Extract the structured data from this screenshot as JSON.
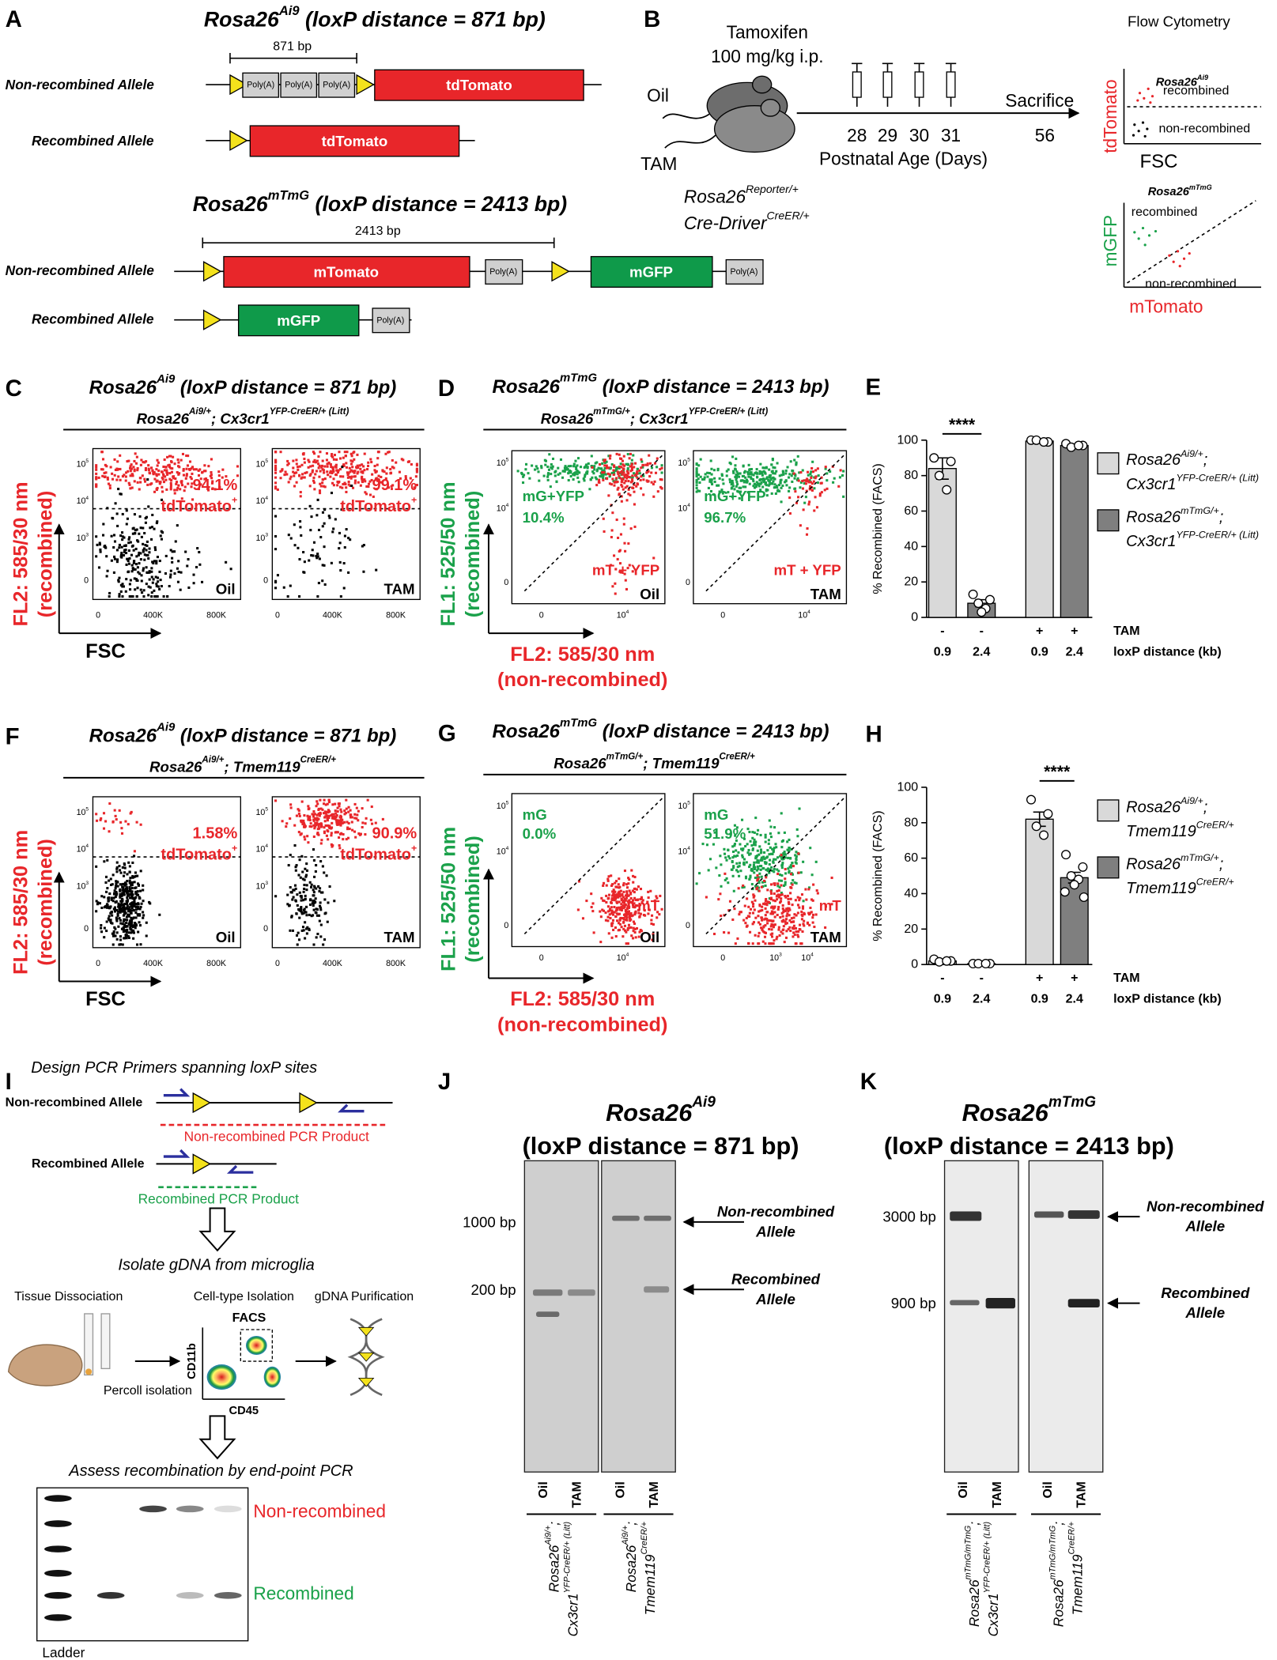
{
  "A": {
    "label": "A",
    "ai9": {
      "title": [
        "Rosa26",
        {
          "sup": "Ai9"
        },
        " (loxP distance = 871 bp)"
      ],
      "distance": "871 bp",
      "non_recombined": "Non-recombined Allele",
      "recombined": "Recombined Allele",
      "polya": "Poly(A)",
      "gene": "tdTomato"
    },
    "mtmg": {
      "title": [
        "Rosa26",
        {
          "sup": "mTmG"
        },
        " (loxP distance = 2413 bp)"
      ],
      "distance": "2413 bp",
      "non_recombined": "Non-recombined Allele",
      "recombined": "Recombined Allele",
      "polya": "Poly(A)",
      "gene_red": "mTomato",
      "gene_green": "mGFP"
    }
  },
  "B": {
    "label": "B",
    "drug": "Tamoxifen",
    "dose": "100 mg/kg i.p.",
    "oil": "Oil",
    "tam": "TAM",
    "injection_days": [
      28,
      29,
      30,
      31
    ],
    "sacrifice_label": "Sacrifice",
    "sacrifice_day": 56,
    "axis_label": "Postnatal Age (Days)",
    "genotype": [
      [
        "Rosa26",
        {
          "sup": "Reporter/+"
        }
      ],
      [
        "Cre-Driver",
        {
          "sup": "CreER/+"
        }
      ]
    ],
    "flow_title": "Flow Cytometry",
    "ai9_plot": {
      "title": [
        "Rosa26",
        {
          "sup": "Ai9"
        }
      ],
      "ylabel": "tdTomato",
      "xlabel": "FSC",
      "upper": "recombined",
      "lower": "non-recombined"
    },
    "mtmg_plot": {
      "title": [
        "Rosa26",
        {
          "sup": "mTmG"
        }
      ],
      "ylabel": "mGFP",
      "xlabel": "mTomato",
      "upper": "recombined",
      "lower": "non-recombined"
    }
  },
  "C": {
    "label": "C",
    "title": [
      "Rosa26",
      {
        "sup": "Ai9"
      },
      " (loxP distance = 871 bp)"
    ],
    "genotype": [
      "Rosa26",
      {
        "sup": "Ai9/+"
      },
      "; Cx3cr1",
      {
        "sup": "YFP-CreER/+ (Litt)"
      }
    ],
    "ylabel": [
      "FL2: 585/30 nm",
      "(recombined)"
    ],
    "xlabel": "FSC",
    "yticks": [
      "0",
      [
        "10",
        {
          "sup": "3"
        }
      ],
      [
        "10",
        {
          "sup": "4"
        }
      ],
      [
        "10",
        {
          "sup": "5"
        }
      ]
    ],
    "xticks": [
      "0",
      "400K",
      "800K"
    ],
    "plots": [
      {
        "percent": "94.1%",
        "gate": [
          "tdTomato",
          {
            "sup": "+"
          }
        ],
        "condition": "Oil"
      },
      {
        "percent": "99.1%",
        "gate": [
          "tdTomato",
          {
            "sup": "+"
          }
        ],
        "condition": "TAM"
      }
    ]
  },
  "D": {
    "label": "D",
    "title": [
      "Rosa26",
      {
        "sup": "mTmG"
      },
      " (loxP distance = 2413 bp)"
    ],
    "genotype": [
      "Rosa26",
      {
        "sup": "mTmG/+"
      },
      "; Cx3cr1",
      {
        "sup": "YFP-CreER/+ (Litt)"
      }
    ],
    "ylabel": [
      "FL1: 525/50 nm",
      "(recombined)"
    ],
    "xlabel": [
      "FL2: 585/30 nm",
      "(non-recombined)"
    ],
    "yticks": [
      "0",
      [
        "10",
        {
          "sup": "4"
        }
      ],
      [
        "10",
        {
          "sup": "5"
        }
      ]
    ],
    "plots": [
      {
        "green_gate": "mG+YFP",
        "percent": "10.4%",
        "red_gate": "mT + YFP",
        "condition": "Oil",
        "xticks": [
          "0",
          [
            "10",
            {
              "sup": "4"
            }
          ]
        ]
      },
      {
        "green_gate": "mG+YFP",
        "percent": "96.7%",
        "red_gate": "mT + YFP",
        "condition": "TAM",
        "xticks": [
          "0",
          [
            "10",
            {
              "sup": "4"
            }
          ]
        ]
      }
    ]
  },
  "E": {
    "label": "E",
    "type": "bar",
    "ylabel": "% Recombined (FACS)",
    "ylim": [
      0,
      100
    ],
    "yticks": [
      0,
      20,
      40,
      60,
      80,
      100
    ],
    "significance": "****",
    "row_labels": [
      "TAM",
      "loxP distance (kb)"
    ],
    "bars": [
      {
        "value": 84,
        "error": 6,
        "points": [
          90,
          88,
          80,
          72
        ],
        "tam": "-",
        "loxp": "0.9",
        "color": "#d9d9d9"
      },
      {
        "value": 8,
        "error": 2,
        "points": [
          13,
          10,
          8,
          5,
          3
        ],
        "tam": "-",
        "loxp": "2.4",
        "color": "#7f7f7f"
      },
      {
        "value": 99.5,
        "error": 0.3,
        "points": [
          100,
          99,
          100,
          99
        ],
        "tam": "+",
        "loxp": "0.9",
        "color": "#d9d9d9"
      },
      {
        "value": 97,
        "error": 0.6,
        "points": [
          98,
          97,
          96,
          97
        ],
        "tam": "+",
        "loxp": "2.4",
        "color": "#7f7f7f"
      }
    ],
    "legend": [
      {
        "color": "#d9d9d9",
        "lines": [
          [
            "Rosa26",
            {
              "sup": "Ai9/+"
            },
            ";"
          ],
          [
            "Cx3cr1",
            {
              "sup": "YFP-CreER/+ (Litt)"
            }
          ]
        ]
      },
      {
        "color": "#7f7f7f",
        "lines": [
          [
            "Rosa26",
            {
              "sup": "mTmG/+"
            },
            ";"
          ],
          [
            "Cx3cr1",
            {
              "sup": "YFP-CreER/+ (Litt)"
            }
          ]
        ]
      }
    ]
  },
  "F": {
    "label": "F",
    "title": [
      "Rosa26",
      {
        "sup": "Ai9"
      },
      " (loxP distance = 871 bp)"
    ],
    "genotype": [
      "Rosa26",
      {
        "sup": "Ai9/+"
      },
      "; Tmem119",
      {
        "sup": "CreER/+"
      }
    ],
    "ylabel": [
      "FL2: 585/30 nm",
      "(recombined)"
    ],
    "xlabel": "FSC",
    "yticks": [
      "0",
      [
        "10",
        {
          "sup": "3"
        }
      ],
      [
        "10",
        {
          "sup": "4"
        }
      ],
      [
        "10",
        {
          "sup": "5"
        }
      ]
    ],
    "xticks": [
      "0",
      "400K",
      "800K"
    ],
    "plots": [
      {
        "percent": "1.58%",
        "gate": [
          "tdTomato",
          {
            "sup": "+"
          }
        ],
        "condition": "Oil"
      },
      {
        "percent": "90.9%",
        "gate": [
          "tdTomato",
          {
            "sup": "+"
          }
        ],
        "condition": "TAM"
      }
    ]
  },
  "G": {
    "label": "G",
    "title": [
      "Rosa26",
      {
        "sup": "mTmG"
      },
      " (loxP distance = 2413 bp)"
    ],
    "genotype": [
      "Rosa26",
      {
        "sup": "mTmG/+"
      },
      "; Tmem119",
      {
        "sup": "CreER/+"
      }
    ],
    "ylabel": [
      "FL1: 525/50 nm",
      "(recombined)"
    ],
    "xlabel": [
      "FL2: 585/30 nm",
      "(non-recombined)"
    ],
    "yticks": [
      "0",
      [
        "10",
        {
          "sup": "4"
        }
      ],
      [
        "10",
        {
          "sup": "5"
        }
      ]
    ],
    "plots": [
      {
        "green_gate": "mG",
        "percent": "0.0%",
        "red_gate": "mT",
        "condition": "Oil",
        "xticks": [
          "0",
          [
            "10",
            {
              "sup": "4"
            }
          ]
        ]
      },
      {
        "green_gate": "mG",
        "percent": "51.9%",
        "red_gate": "mT",
        "condition": "TAM",
        "xticks": [
          "0",
          [
            "10",
            {
              "sup": "3"
            }
          ],
          [
            "10",
            {
              "sup": "4"
            }
          ]
        ]
      }
    ]
  },
  "H": {
    "label": "H",
    "type": "bar",
    "ylabel": "% Recombined (FACS)",
    "ylim": [
      0,
      100
    ],
    "yticks": [
      0,
      20,
      40,
      60,
      80,
      100
    ],
    "significance": "****",
    "row_labels": [
      "TAM",
      "loxP distance (kb)"
    ],
    "bars": [
      {
        "value": 2,
        "error": 0.6,
        "points": [
          3,
          2,
          1.5,
          2
        ],
        "tam": "-",
        "loxp": "0.9",
        "color": "#d9d9d9"
      },
      {
        "value": 0.5,
        "error": 0.1,
        "points": [
          0.5,
          0.5,
          0.5,
          0.5
        ],
        "tam": "-",
        "loxp": "2.4",
        "color": "#7f7f7f"
      },
      {
        "value": 82,
        "error": 4,
        "points": [
          93,
          85,
          78,
          73
        ],
        "tam": "+",
        "loxp": "0.9",
        "color": "#d9d9d9"
      },
      {
        "value": 49,
        "error": 3,
        "points": [
          62,
          55,
          50,
          48,
          45,
          41,
          38
        ],
        "tam": "+",
        "loxp": "2.4",
        "color": "#7f7f7f"
      }
    ],
    "legend": [
      {
        "color": "#d9d9d9",
        "lines": [
          [
            "Rosa26",
            {
              "sup": "Ai9/+"
            },
            ";"
          ],
          [
            "Tmem119",
            {
              "sup": "CreER/+"
            }
          ]
        ]
      },
      {
        "color": "#7f7f7f",
        "lines": [
          [
            "Rosa26",
            {
              "sup": "mTmG/+"
            },
            ";"
          ],
          [
            "Tmem119",
            {
              "sup": "CreER/+"
            }
          ]
        ]
      }
    ]
  },
  "I": {
    "label": "I",
    "step1": "Design PCR Primers spanning loxP sites",
    "non_recombined_allele": "Non-recombined Allele",
    "non_recombined_product": "Non-recombined PCR Product",
    "recombined_allele": "Recombined Allele",
    "recombined_product": "Recombined PCR Product",
    "step2": "Isolate gDNA from microglia",
    "substeps": [
      "Tissue Dissociation",
      "Cell-type Isolation",
      "gDNA Purification"
    ],
    "facs": "FACS",
    "facs_y": "CD11b",
    "facs_x": "CD45",
    "percoll": "Percoll isolation",
    "step3": "Assess recombination by end-point PCR",
    "band_upper": "Non-recombined",
    "band_lower": "Recombined",
    "ladder": "Ladder"
  },
  "J": {
    "label": "J",
    "title": [
      [
        "Rosa26",
        {
          "sup": "Ai9"
        }
      ],
      "(loxP distance = 871 bp)"
    ],
    "ladder_marks": [
      "1000 bp",
      "200 bp"
    ],
    "arrows": [
      [
        "Non-recombined",
        "Allele"
      ],
      [
        "Recombined",
        "Allele"
      ]
    ],
    "lanes": [
      "Oil",
      "TAM",
      "Oil",
      "TAM"
    ],
    "genotypes": [
      [
        [
          "Rosa26",
          {
            "sup": "Ai9/+"
          },
          ";"
        ],
        [
          "Cx3cr1",
          {
            "sup": "YFP-CreER/+ (Litt)"
          }
        ]
      ],
      [
        [
          "Rosa26",
          {
            "sup": "Ai9/+"
          },
          ";"
        ],
        [
          "Tmem119",
          {
            "sup": "CreER/+"
          }
        ]
      ]
    ]
  },
  "K": {
    "label": "K",
    "title": [
      [
        "Rosa26",
        {
          "sup": "mTmG"
        }
      ],
      "(loxP distance = 2413 bp)"
    ],
    "ladder_marks": [
      "3000 bp",
      "900 bp"
    ],
    "arrows": [
      [
        "Non-recombined",
        "Allele"
      ],
      [
        "Recombined",
        "Allele"
      ]
    ],
    "lanes": [
      "Oil",
      "TAM",
      "Oil",
      "TAM"
    ],
    "genotypes": [
      [
        [
          "Rosa26",
          {
            "sup": "mTmG/mTmG"
          },
          ";"
        ],
        [
          "Cx3cr1",
          {
            "sup": "YFP-CreER/+ (Litt)"
          }
        ]
      ],
      [
        [
          "Rosa26",
          {
            "sup": "mTmG/mTmG"
          },
          ";"
        ],
        [
          "Tmem119",
          {
            "sup": "CreER/+"
          }
        ]
      ]
    ]
  }
}
